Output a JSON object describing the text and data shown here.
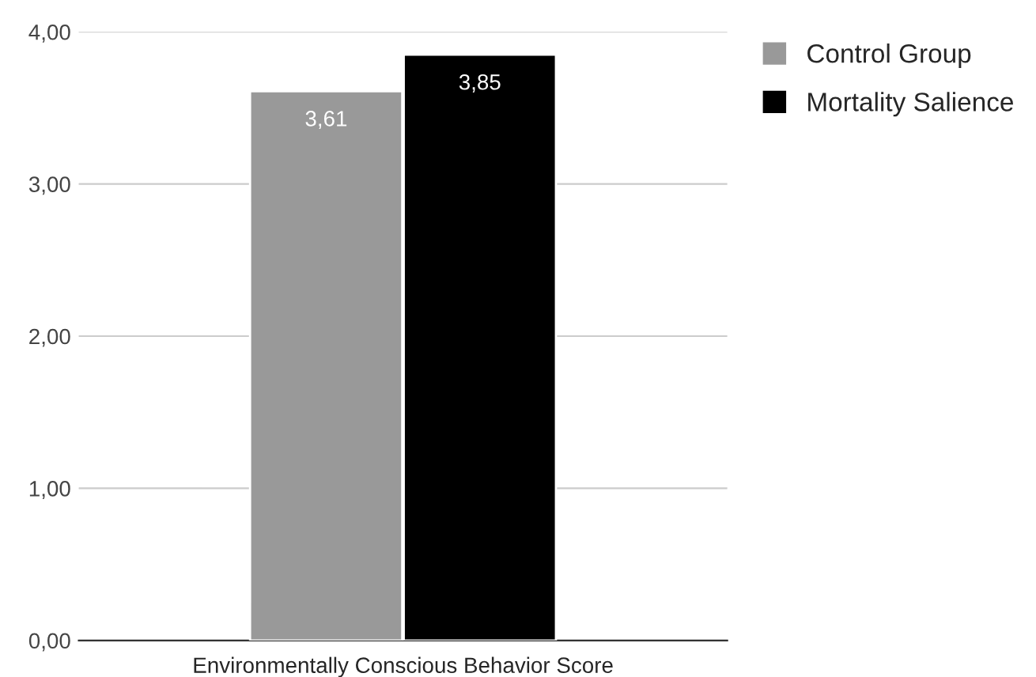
{
  "chart_data": {
    "type": "bar",
    "xlabel": "Environmentally Conscious Behavior Score",
    "categories": [
      null
    ],
    "series": [
      {
        "name": "Control Group",
        "color": "#999999",
        "values": [
          3.61
        ],
        "value_labels": [
          "3,61"
        ]
      },
      {
        "name": "Mortality Salience",
        "color": "#000000",
        "values": [
          3.85
        ],
        "value_labels": [
          "3,85"
        ]
      }
    ],
    "ylim": [
      0,
      4
    ],
    "yticks": [
      {
        "value": 0,
        "label": "0,00"
      },
      {
        "value": 1,
        "label": "1,00"
      },
      {
        "value": 2,
        "label": "2,00"
      },
      {
        "value": 3,
        "label": "3,00"
      },
      {
        "value": 4,
        "label": "4,00"
      }
    ],
    "grid": "y",
    "legend": "top right"
  }
}
